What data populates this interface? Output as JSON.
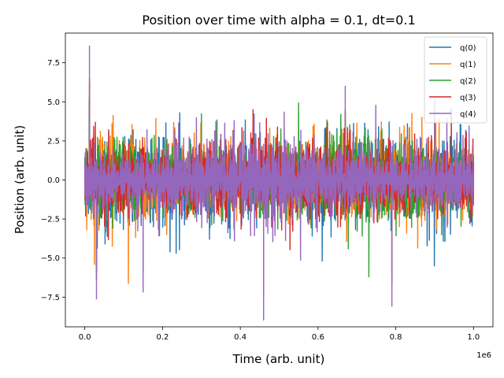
{
  "chart_data": {
    "type": "line",
    "title": "Position over time with alpha = 0.1, dt=0.1",
    "xlabel": "Time (arb. unit)",
    "ylabel": "Position (arb. unit)",
    "x_offset_label": "1e6",
    "xlim": [
      -0.05,
      1.05
    ],
    "ylim": [
      -9.4,
      9.4
    ],
    "x_range": [
      0,
      1.0
    ],
    "x_ticks": [
      0.0,
      0.2,
      0.4,
      0.6,
      0.8,
      1.0
    ],
    "x_tick_labels": [
      "0.0",
      "0.2",
      "0.4",
      "0.6",
      "0.8",
      "1.0"
    ],
    "y_ticks": [
      -7.5,
      -5.0,
      -2.5,
      0.0,
      2.5,
      5.0,
      7.5
    ],
    "y_tick_labels": [
      "−7.5",
      "−5.0",
      "−2.5",
      "0.0",
      "2.5",
      "5.0",
      "7.5"
    ],
    "grid": false,
    "legend_position": "top-right",
    "series": [
      {
        "name": "q(0)",
        "color": "#1f77b4",
        "max": 5.5,
        "min": -6.5
      },
      {
        "name": "q(1)",
        "color": "#ff7f0e",
        "max": 6.0,
        "min": -6.8
      },
      {
        "name": "q(2)",
        "color": "#2ca02c",
        "max": 6.2,
        "min": -7.0
      },
      {
        "name": "q(3)",
        "color": "#d62728",
        "max": 6.5,
        "min": -7.5
      },
      {
        "name": "q(4)",
        "color": "#9467bd",
        "max": 8.6,
        "min": -9.0
      }
    ]
  }
}
